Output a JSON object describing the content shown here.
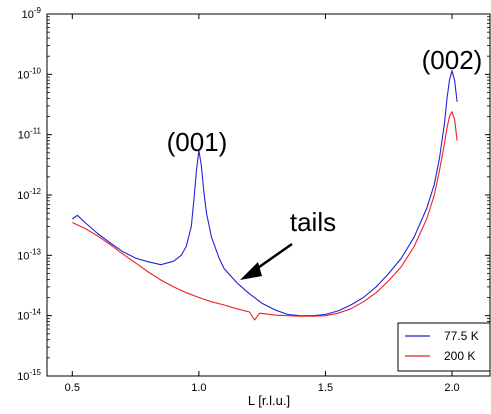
{
  "chart_data": {
    "type": "line",
    "title": "",
    "xlabel": "L [r.l.u.]",
    "ylabel": "",
    "xlim": [
      0.4,
      2.15
    ],
    "ylim": [
      1e-15,
      1e-09
    ],
    "yscale": "log",
    "grid": false,
    "legend_position": "bottom-right",
    "x_ticks": [
      {
        "value": 0.5,
        "label": "0.5"
      },
      {
        "value": 1.0,
        "label": "1.0"
      },
      {
        "value": 1.5,
        "label": "1.5"
      },
      {
        "value": 2.0,
        "label": "2.0"
      }
    ],
    "y_ticks": [
      {
        "value": 1e-15,
        "base": "10",
        "exp": "-15"
      },
      {
        "value": 1e-14,
        "base": "10",
        "exp": "-14"
      },
      {
        "value": 1e-13,
        "base": "10",
        "exp": "-13"
      },
      {
        "value": 1e-12,
        "base": "10",
        "exp": "-12"
      },
      {
        "value": 1e-11,
        "base": "10",
        "exp": "-11"
      },
      {
        "value": 1e-10,
        "base": "10",
        "exp": "-10"
      },
      {
        "value": 1e-09,
        "base": "10",
        "exp": "-9"
      }
    ],
    "series": [
      {
        "name": "77.5 K",
        "color": "#2222dd",
        "x": [
          0.5,
          0.52,
          0.55,
          0.6,
          0.65,
          0.7,
          0.75,
          0.8,
          0.85,
          0.9,
          0.93,
          0.95,
          0.97,
          0.98,
          0.99,
          1.0,
          1.01,
          1.02,
          1.03,
          1.05,
          1.08,
          1.1,
          1.15,
          1.2,
          1.25,
          1.3,
          1.35,
          1.4,
          1.45,
          1.5,
          1.55,
          1.6,
          1.65,
          1.7,
          1.75,
          1.8,
          1.85,
          1.9,
          1.93,
          1.95,
          1.97,
          1.98,
          1.99,
          2.0,
          2.01,
          2.02
        ],
        "y": [
          4e-13,
          4.6e-13,
          3.5e-13,
          2.3e-13,
          1.6e-13,
          1.15e-13,
          9e-14,
          7.8e-14,
          7e-14,
          8e-14,
          1e-13,
          1.4e-13,
          3e-13,
          8e-13,
          2.5e-12,
          5.5e-12,
          3e-12,
          1.1e-12,
          5e-13,
          2e-13,
          9e-14,
          6e-14,
          3.5e-14,
          2.3e-14,
          1.6e-14,
          1.25e-14,
          1.05e-14,
          1e-14,
          1e-14,
          1.05e-14,
          1.2e-14,
          1.5e-14,
          2e-14,
          3e-14,
          5e-14,
          9e-14,
          2e-13,
          6e-13,
          1.5e-12,
          4e-12,
          1.5e-11,
          4e-11,
          8e-11,
          1.15e-10,
          8e-11,
          3.5e-11
        ]
      },
      {
        "name": "200 K",
        "color": "#ee2222",
        "x": [
          0.5,
          0.55,
          0.6,
          0.65,
          0.7,
          0.75,
          0.8,
          0.85,
          0.9,
          0.95,
          1.0,
          1.05,
          1.1,
          1.15,
          1.2,
          1.22,
          1.24,
          1.3,
          1.35,
          1.4,
          1.45,
          1.5,
          1.55,
          1.6,
          1.65,
          1.7,
          1.75,
          1.8,
          1.85,
          1.9,
          1.93,
          1.95,
          1.97,
          1.98,
          1.99,
          2.0,
          2.01,
          2.02
        ],
        "y": [
          3.5e-13,
          2.8e-13,
          2.1e-13,
          1.5e-13,
          1.05e-13,
          7.5e-14,
          5.3e-14,
          3.9e-14,
          3e-14,
          2.4e-14,
          2e-14,
          1.7e-14,
          1.5e-14,
          1.3e-14,
          1.15e-14,
          8.5e-15,
          1.1e-14,
          1.02e-14,
          1e-14,
          9.8e-15,
          9.8e-15,
          1e-14,
          1.1e-14,
          1.3e-14,
          1.7e-14,
          2.4e-14,
          3.8e-14,
          6.5e-14,
          1.4e-13,
          4e-13,
          1e-12,
          2.5e-12,
          7e-12,
          1.3e-11,
          2e-11,
          2.4e-11,
          1.8e-11,
          8e-12
        ]
      }
    ],
    "annotations": [
      {
        "text": "(001)",
        "x": 0.98,
        "y": 6e-11
      },
      {
        "text": "(002)",
        "x": 1.9,
        "y": 5e-10
      },
      {
        "text": "tails",
        "x": 1.48,
        "y": 6e-13
      }
    ]
  }
}
